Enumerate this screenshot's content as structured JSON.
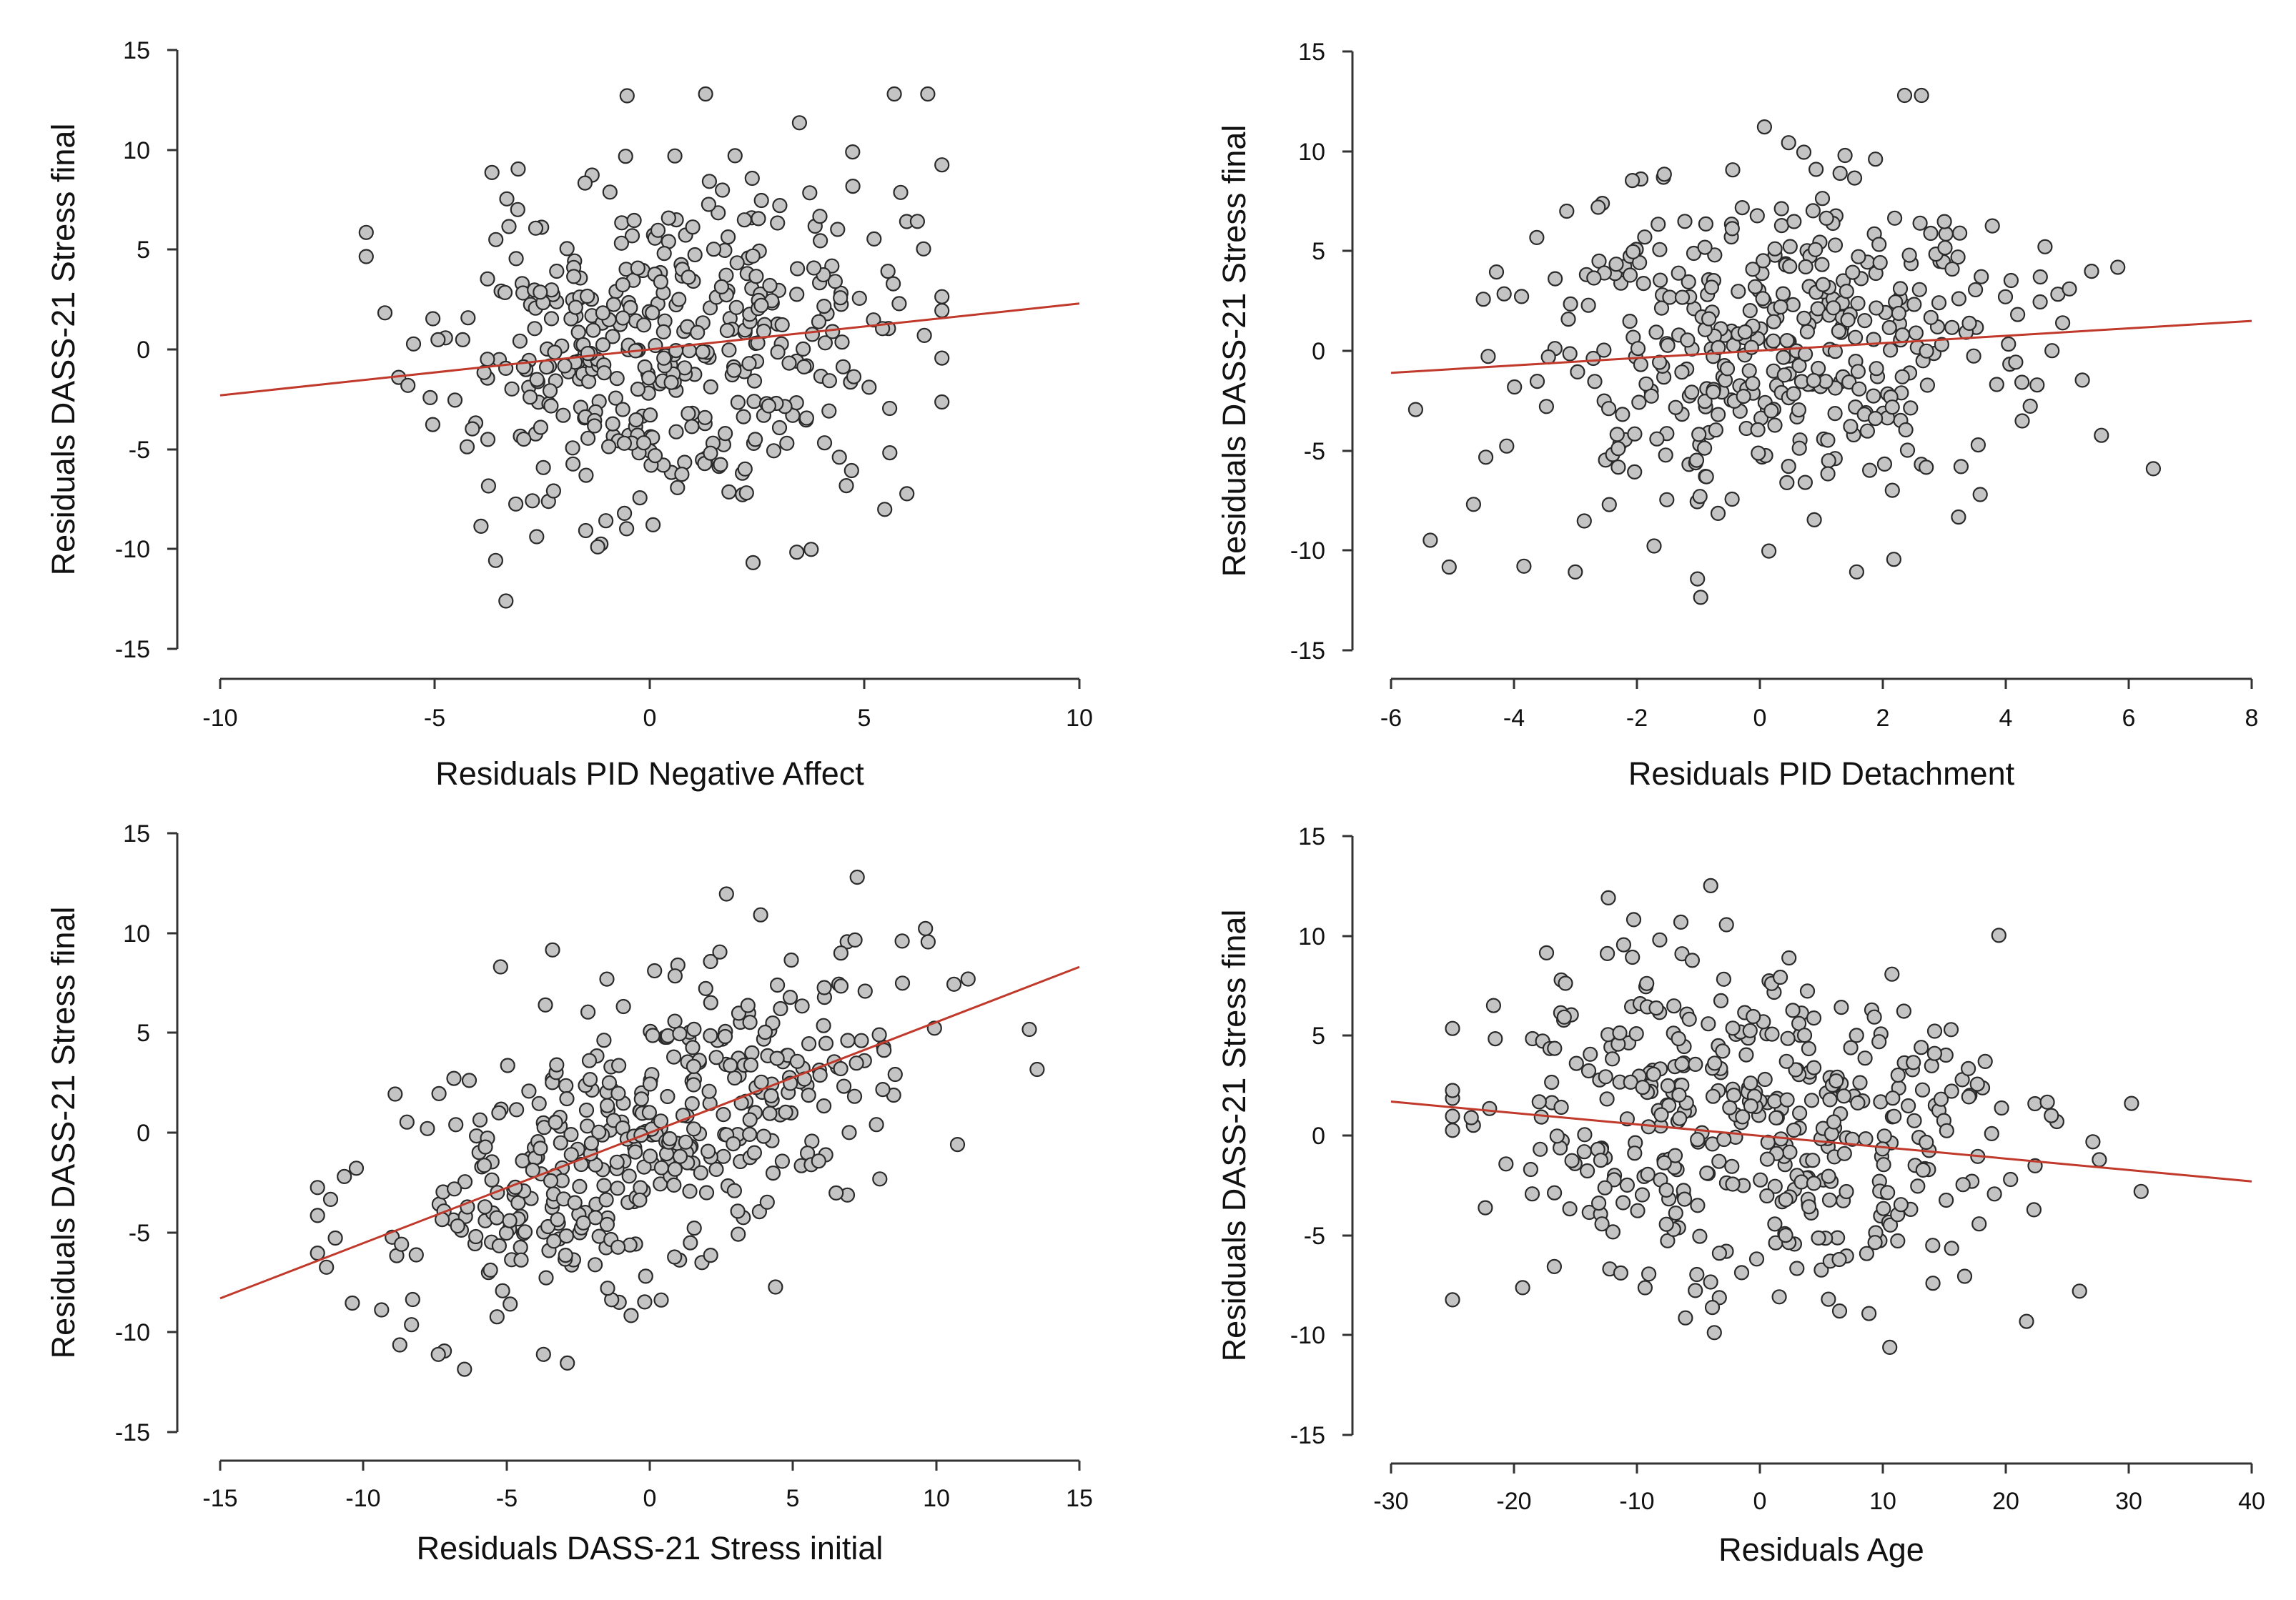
{
  "chart_data": [
    {
      "type": "scatter",
      "title": "",
      "xlabel": "Residuals PID Negative Affect",
      "ylabel": "Residuals DASS-21 Stress final",
      "xlim": [
        -10,
        10
      ],
      "ylim": [
        -15,
        15
      ],
      "xticks": [
        "-10",
        "-5",
        "0",
        "5",
        "10"
      ],
      "yticks": [
        "-15",
        "-10",
        "-5",
        "0",
        "5",
        "10",
        "15"
      ],
      "grid": false,
      "regression_line": {
        "x": [
          -10,
          10
        ],
        "y": [
          -2.3,
          2.3
        ],
        "color": "#c0392b"
      },
      "points": {
        "n": 420,
        "x_center": 0.3,
        "x_spread": 2.6,
        "y_spread": 4.3,
        "slope": 0.23,
        "seed": 11,
        "x_min": -6.6,
        "x_max": 6.8
      }
    },
    {
      "type": "scatter",
      "title": "",
      "xlabel": "Residuals PID Detachment",
      "ylabel": "Residuals DASS-21 Stress final",
      "xlim": [
        -6,
        8
      ],
      "ylim": [
        -15,
        15
      ],
      "xticks": [
        "-6",
        "-4",
        "-2",
        "0",
        "2",
        "4",
        "6",
        "8"
      ],
      "yticks": [
        "-15",
        "-10",
        "-5",
        "0",
        "5",
        "10",
        "15"
      ],
      "grid": false,
      "regression_line": {
        "x": [
          -6,
          8
        ],
        "y": [
          -1.1,
          1.5
        ],
        "color": "#c0392b"
      },
      "points": {
        "n": 420,
        "x_center": 0.1,
        "x_spread": 2.0,
        "y_spread": 4.4,
        "slope": 0.19,
        "seed": 23,
        "x_min": -5.6,
        "x_max": 6.4
      }
    },
    {
      "type": "scatter",
      "title": "",
      "xlabel": "Residuals DASS-21 Stress initial",
      "ylabel": "Residuals DASS-21 Stress final",
      "xlim": [
        -15,
        15
      ],
      "ylim": [
        -15,
        15
      ],
      "xticks": [
        "-15",
        "-10",
        "-5",
        "0",
        "5",
        "10",
        "15"
      ],
      "yticks": [
        "-15",
        "-10",
        "-5",
        "0",
        "5",
        "10",
        "15"
      ],
      "grid": false,
      "regression_line": {
        "x": [
          -15,
          15
        ],
        "y": [
          -8.3,
          8.3
        ],
        "color": "#c0392b"
      },
      "points": {
        "n": 430,
        "x_center": 0.2,
        "x_spread": 4.6,
        "y_spread": 3.6,
        "slope": 0.55,
        "seed": 37,
        "x_min": -11.6,
        "x_max": 14.2
      }
    },
    {
      "type": "scatter",
      "title": "",
      "xlabel": "Residuals Age",
      "ylabel": "Residuals DASS-21 Stress final",
      "xlim": [
        -30,
        40
      ],
      "ylim": [
        -15,
        15
      ],
      "xticks": [
        "-30",
        "-20",
        "-10",
        "0",
        "10",
        "20",
        "30",
        "40"
      ],
      "yticks": [
        "-15",
        "-10",
        "-5",
        "0",
        "5",
        "10",
        "15"
      ],
      "grid": false,
      "regression_line": {
        "x": [
          -30,
          40
        ],
        "y": [
          1.7,
          -2.3
        ],
        "color": "#c0392b"
      },
      "points": {
        "n": 430,
        "x_center": -1.0,
        "x_spread": 11.0,
        "y_spread": 4.2,
        "slope": -0.057,
        "seed": 51,
        "x_min": -25.0,
        "x_max": 32.0
      }
    }
  ]
}
